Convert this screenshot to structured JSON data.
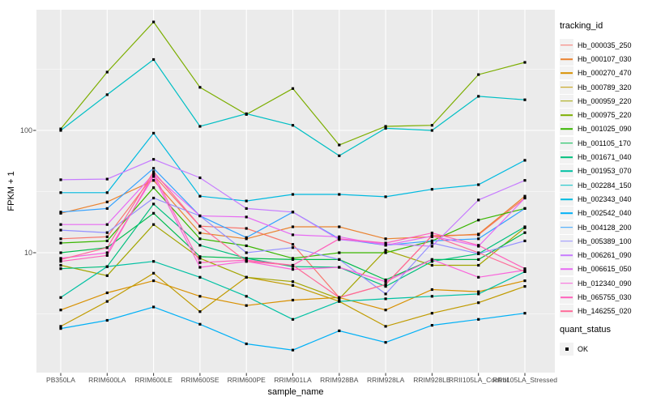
{
  "figure": {
    "background": "#FFFFFF"
  },
  "panel": {
    "background": "#EBEBEB",
    "grid_color": "#FFFFFF",
    "tick_color": "#333333",
    "legend_key_background": "#F2F2F2",
    "point_color": "#000000"
  },
  "colors": {
    "axis_text": "#4D4D4D",
    "axis_title": "#000000"
  },
  "legend": {
    "tracking_title": "tracking_id",
    "quant_title": "quant_status",
    "quant_items": [
      {
        "label": "OK",
        "marker": "black-square"
      }
    ]
  },
  "chart_data": {
    "type": "line",
    "title": "",
    "xlabel": "sample_name",
    "ylabel": "FPKM + 1",
    "y_scale": "log10",
    "ylim": [
      1.05,
      970
    ],
    "grid": true,
    "legend_position": "right",
    "point_marker": "square",
    "y_major_ticks": [
      {
        "label": "100",
        "value": 100
      },
      {
        "label": "10",
        "value": 10
      }
    ],
    "y_minor_values": [
      3.162,
      31.62,
      316.2
    ],
    "categories": [
      "PB350LA",
      "RRIM600LA",
      "RRIM600LE",
      "RRIM600SE",
      "RRIM600PE",
      "RRIM901LA",
      "RRIM928BA",
      "RRIM928LA",
      "RRIM928LE",
      "RRII105LA_Control",
      "RRII105LA_Stressed"
    ],
    "series": [
      {
        "name": "Hb_000035_250",
        "color": "#F8766D",
        "values": [
          13,
          13.5,
          43,
          16.5,
          15.8,
          11.7,
          4.3,
          5.5,
          13.8,
          14,
          28
        ]
      },
      {
        "name": "Hb_000107_030",
        "color": "#EA8331",
        "values": [
          21,
          26,
          39,
          14.5,
          13,
          16.3,
          16.3,
          13,
          13.5,
          14.2,
          29
        ]
      },
      {
        "name": "Hb_000270_470",
        "color": "#D89000",
        "values": [
          3.4,
          4.7,
          5.9,
          4.4,
          3.7,
          4.1,
          4.3,
          3.4,
          5,
          4.8,
          5.9
        ]
      },
      {
        "name": "Hb_000789_320",
        "color": "#C09B00",
        "values": [
          2.5,
          4,
          6.8,
          3.3,
          6.3,
          5.4,
          4,
          2.5,
          3.2,
          3.9,
          5.3
        ]
      },
      {
        "name": "Hb_000959_220",
        "color": "#A3A500",
        "values": [
          7.9,
          6.5,
          17,
          9,
          6.3,
          5.8,
          4.2,
          10.5,
          7.9,
          7.9,
          16
        ]
      },
      {
        "name": "Hb_000975_220",
        "color": "#7CAE00",
        "values": [
          103,
          300,
          770,
          225,
          135,
          220,
          76,
          108,
          110,
          286,
          360
        ]
      },
      {
        "name": "Hb_001025_090",
        "color": "#39B600",
        "values": [
          12,
          12.5,
          34,
          13,
          11.4,
          9,
          10,
          10,
          12.5,
          18.5,
          23
        ]
      },
      {
        "name": "Hb_001105_170",
        "color": "#00BB4E",
        "values": [
          10,
          11,
          21,
          9.3,
          9,
          8.8,
          8.8,
          6,
          8.8,
          8.8,
          14.6
        ]
      },
      {
        "name": "Hb_001671_040",
        "color": "#00BF7D",
        "values": [
          7.4,
          7.7,
          25,
          11.5,
          9,
          7.7,
          7.6,
          5.3,
          8.5,
          9.8,
          16.3
        ]
      },
      {
        "name": "Hb_001953_070",
        "color": "#00C1A3",
        "values": [
          4.3,
          7.7,
          8.5,
          6.3,
          4.4,
          2.85,
          4,
          4.2,
          4.4,
          4.6,
          7
        ]
      },
      {
        "name": "Hb_002284_150",
        "color": "#00BFC4",
        "values": [
          100,
          196,
          380,
          108,
          137,
          110,
          62,
          104,
          100,
          190,
          178
        ]
      },
      {
        "name": "Hb_002343_040",
        "color": "#00BAE0",
        "values": [
          31,
          31,
          95,
          29,
          26.5,
          30,
          30,
          28.7,
          33,
          36,
          57
        ]
      },
      {
        "name": "Hb_002542_040",
        "color": "#00B0F6",
        "values": [
          2.4,
          2.8,
          3.6,
          2.6,
          1.8,
          1.6,
          2.3,
          1.85,
          2.55,
          2.85,
          3.2
        ]
      },
      {
        "name": "Hb_004128_200",
        "color": "#35A2FF",
        "values": [
          21.5,
          23,
          49,
          20,
          13.3,
          21.5,
          13,
          11.5,
          12.5,
          13,
          23
        ]
      },
      {
        "name": "Hb_005389_100",
        "color": "#9590FF",
        "values": [
          15.3,
          14.6,
          28,
          20,
          10,
          11,
          8.8,
          4.6,
          12,
          9.8,
          12.5
        ]
      },
      {
        "name": "Hb_006261_090",
        "color": "#C77CFF",
        "values": [
          39.5,
          40,
          58,
          41,
          23,
          21.5,
          12.8,
          11.8,
          11.3,
          27,
          39
        ]
      },
      {
        "name": "Hb_006615_050",
        "color": "#E76BF3",
        "values": [
          17,
          17,
          44,
          20,
          19.6,
          14,
          13.5,
          11.5,
          13.7,
          11.3,
          28
        ]
      },
      {
        "name": "Hb_012340_090",
        "color": "#FA62DB",
        "values": [
          9,
          10,
          42,
          7.6,
          8.5,
          7.3,
          7.6,
          5.8,
          8.8,
          6.3,
          7.2
        ]
      },
      {
        "name": "Hb_065755_030",
        "color": "#FF62BC",
        "values": [
          8.5,
          9.5,
          44,
          8.3,
          8.7,
          7.9,
          13,
          12,
          14.5,
          11.5,
          7.4
        ]
      },
      {
        "name": "Hb_146255_020",
        "color": "#FF6A98",
        "values": [
          8.8,
          11,
          46,
          16.5,
          8.5,
          7.9,
          4.3,
          5.5,
          13.8,
          10,
          7
        ]
      }
    ]
  }
}
